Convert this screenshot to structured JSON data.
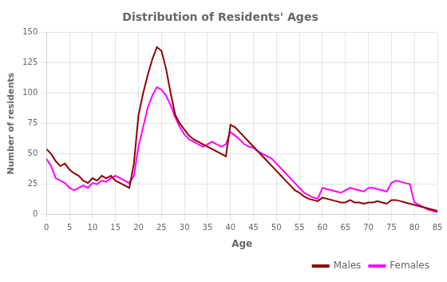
{
  "chart_data": {
    "type": "line",
    "title": "Distribution of Residents' Ages",
    "xlabel": "Age",
    "ylabel": "Number of residents",
    "x": [
      0,
      1,
      2,
      3,
      4,
      5,
      6,
      7,
      8,
      9,
      10,
      11,
      12,
      13,
      14,
      15,
      16,
      17,
      18,
      19,
      20,
      21,
      22,
      23,
      24,
      25,
      26,
      27,
      28,
      29,
      30,
      31,
      32,
      33,
      34,
      35,
      36,
      37,
      38,
      39,
      40,
      41,
      42,
      43,
      44,
      45,
      46,
      47,
      48,
      49,
      50,
      51,
      52,
      53,
      54,
      55,
      56,
      57,
      58,
      59,
      60,
      61,
      62,
      63,
      64,
      65,
      66,
      67,
      68,
      69,
      70,
      71,
      72,
      73,
      74,
      75,
      76,
      77,
      78,
      79,
      80,
      81,
      82,
      83,
      84,
      85
    ],
    "series": [
      {
        "name": "Males",
        "color": "#8B0000",
        "values": [
          54,
          50,
          44,
          40,
          42,
          37,
          34,
          32,
          28,
          26,
          30,
          28,
          32,
          30,
          32,
          28,
          26,
          24,
          22,
          42,
          82,
          100,
          115,
          128,
          138,
          135,
          120,
          100,
          82,
          75,
          70,
          65,
          62,
          60,
          58,
          56,
          54,
          52,
          50,
          48,
          74,
          72,
          68,
          64,
          60,
          56,
          52,
          48,
          44,
          40,
          36,
          32,
          28,
          24,
          20,
          18,
          15,
          13,
          12,
          11,
          14,
          13,
          12,
          11,
          10,
          10,
          12,
          10,
          10,
          9,
          10,
          10,
          11,
          10,
          9,
          12,
          12,
          11,
          10,
          9,
          8,
          7,
          6,
          5,
          4,
          3
        ]
      },
      {
        "name": "Females",
        "color": "#FF00FF",
        "values": [
          46,
          40,
          30,
          28,
          26,
          22,
          20,
          22,
          24,
          22,
          26,
          25,
          28,
          27,
          30,
          32,
          30,
          28,
          26,
          32,
          56,
          72,
          88,
          98,
          105,
          103,
          98,
          90,
          80,
          72,
          66,
          62,
          60,
          58,
          56,
          58,
          60,
          58,
          56,
          58,
          68,
          65,
          62,
          58,
          56,
          55,
          52,
          50,
          48,
          46,
          42,
          38,
          34,
          30,
          26,
          22,
          18,
          16,
          14,
          13,
          22,
          21,
          20,
          19,
          18,
          20,
          22,
          21,
          20,
          19,
          22,
          22,
          21,
          20,
          19,
          26,
          28,
          27,
          26,
          25,
          10,
          8,
          6,
          4,
          3,
          2
        ]
      }
    ],
    "xlim": [
      0,
      85
    ],
    "ylim": [
      0,
      150
    ],
    "xticks": [
      0,
      5,
      10,
      15,
      20,
      25,
      30,
      35,
      40,
      45,
      50,
      55,
      60,
      65,
      70,
      75,
      80,
      85
    ],
    "yticks": [
      0,
      25,
      50,
      75,
      100,
      125,
      150
    ],
    "grid": true,
    "legend": "lower right"
  }
}
